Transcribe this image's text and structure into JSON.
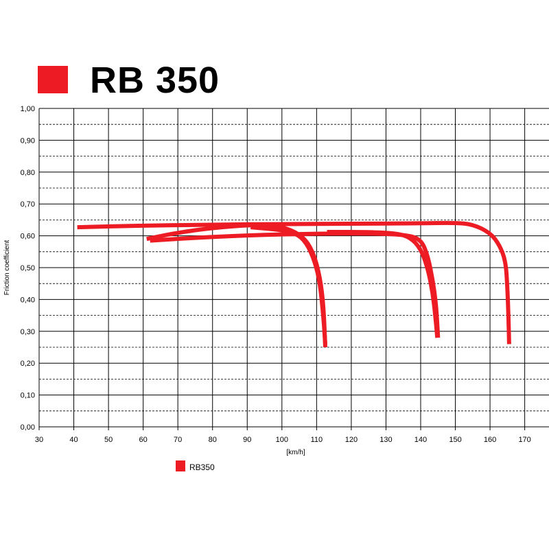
{
  "header": {
    "title": "RB 350",
    "swatch_color": "#ed1c24"
  },
  "chart_data": {
    "type": "line",
    "xlabel": "[km/h]",
    "ylabel": "Friction coefficient",
    "xlim": [
      30,
      177
    ],
    "ylim": [
      0,
      1
    ],
    "x_ticks": [
      "30",
      "40",
      "50",
      "60",
      "70",
      "80",
      "90",
      "100",
      "110",
      "120",
      "130",
      "140",
      "150",
      "160",
      "170"
    ],
    "y_ticks": [
      "0,00",
      "0,10",
      "0,20",
      "0,30",
      "0,40",
      "0,50",
      "0,60",
      "0,70",
      "0,80",
      "0,90",
      "1,00"
    ],
    "grid": true,
    "legend_position": "bottom-left",
    "series": [
      {
        "name": "RB350",
        "color": "#ed1c24",
        "curves": [
          [
            [
              41,
              0.627
            ],
            [
              60,
              0.632
            ],
            [
              80,
              0.635
            ],
            [
              100,
              0.637
            ],
            [
              120,
              0.638
            ],
            [
              140,
              0.639
            ],
            [
              150,
              0.641
            ],
            [
              155,
              0.636
            ],
            [
              160,
              0.61
            ],
            [
              162.8,
              0.57
            ],
            [
              164.5,
              0.52
            ],
            [
              165,
              0.44
            ],
            [
              165.3,
              0.35
            ],
            [
              165.5,
              0.26
            ]
          ],
          [
            [
              61,
              0.59
            ],
            [
              70,
              0.61
            ],
            [
              80,
              0.625
            ],
            [
              92,
              0.635
            ],
            [
              100,
              0.63
            ],
            [
              106,
              0.6
            ],
            [
              109,
              0.55
            ],
            [
              111,
              0.47
            ],
            [
              112,
              0.38
            ],
            [
              112.5,
              0.25
            ]
          ],
          [
            [
              62,
              0.585
            ],
            [
              80,
              0.597
            ],
            [
              100,
              0.605
            ],
            [
              120,
              0.608
            ],
            [
              135,
              0.605
            ],
            [
              140,
              0.59
            ],
            [
              142,
              0.54
            ],
            [
              143.5,
              0.46
            ],
            [
              144.5,
              0.38
            ],
            [
              145,
              0.28
            ]
          ],
          [
            [
              91,
              0.627
            ],
            [
              100,
              0.618
            ],
            [
              104,
              0.608
            ],
            [
              107,
              0.58
            ],
            [
              109.5,
              0.52
            ],
            [
              111,
              0.45
            ],
            [
              112,
              0.34
            ],
            [
              112.5,
              0.26
            ]
          ],
          [
            [
              113,
              0.612
            ],
            [
              125,
              0.612
            ],
            [
              133,
              0.608
            ],
            [
              137,
              0.595
            ],
            [
              140,
              0.56
            ],
            [
              142,
              0.5
            ],
            [
              143.5,
              0.42
            ],
            [
              144.3,
              0.34
            ],
            [
              144.8,
              0.28
            ]
          ]
        ]
      }
    ]
  }
}
